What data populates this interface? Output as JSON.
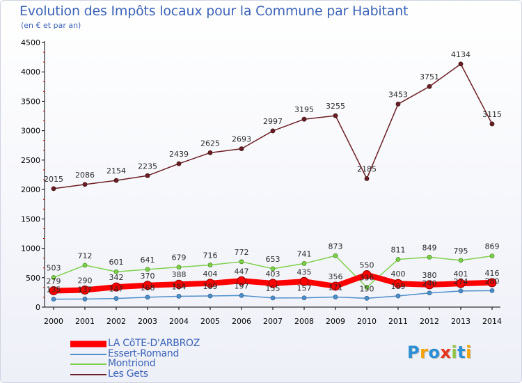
{
  "chart_data": {
    "type": "line",
    "title": "Evolution des Impôts locaux pour la Commune par Habitant",
    "subtitle": "(en € et par an)",
    "categories": [
      "2000",
      "2001",
      "2002",
      "2003",
      "2004",
      "2005",
      "2006",
      "2007",
      "2008",
      "2009",
      "2010",
      "2011",
      "2012",
      "2013",
      "2014"
    ],
    "ylim": [
      0,
      4500
    ],
    "yticks": [
      0,
      500,
      1000,
      1500,
      2000,
      2500,
      3000,
      3500,
      4000,
      4500
    ],
    "grid": false,
    "legend_position": "bottom-left",
    "series": [
      {
        "name": "LA CôTE-D'ARBROZ",
        "color": "#ff0000",
        "width": 8,
        "values": [
          279,
          290,
          342,
          370,
          388,
          404,
          447,
          403,
          435,
          356,
          550,
          400,
          380,
          401,
          416
        ],
        "labels": [
          "279",
          "290",
          "342",
          "370",
          "388",
          "404",
          "447",
          "403",
          "435",
          "356",
          "550",
          "400",
          "380",
          "401",
          "416"
        ]
      },
      {
        "name": "Essert-Romand",
        "color": "#4e8fc9",
        "width": 1.5,
        "values": [
          135,
          137,
          147,
          168,
          184,
          189,
          197,
          155,
          157,
          171,
          150,
          189,
          240,
          274,
          280
        ],
        "labels": [
          "135",
          "137",
          "147",
          "168",
          "184",
          "189",
          "197",
          "155",
          "157",
          "171",
          "150",
          "189",
          "240",
          "274",
          "280"
        ]
      },
      {
        "name": "Montriond",
        "color": "#7ed04a",
        "width": 1.5,
        "values": [
          503,
          712,
          601,
          641,
          679,
          716,
          772,
          653,
          741,
          873,
          336,
          811,
          849,
          795,
          869
        ],
        "labels": [
          "503",
          "712",
          "601",
          "641",
          "679",
          "716",
          "772",
          "653",
          "741",
          "873",
          "336",
          "811",
          "849",
          "795",
          "869"
        ]
      },
      {
        "name": "Les Gets",
        "color": "#6b1f24",
        "width": 1.5,
        "values": [
          2015,
          2086,
          2154,
          2235,
          2439,
          2625,
          2693,
          2997,
          3195,
          3255,
          2185,
          3453,
          3751,
          4134,
          3115
        ],
        "labels": [
          "2015",
          "2086",
          "2154",
          "2235",
          "2439",
          "2625",
          "2693",
          "2997",
          "3195",
          "3255",
          "2185",
          "3453",
          "3751",
          "4134",
          "3115"
        ]
      }
    ]
  },
  "logo": {
    "text": "Proxiti",
    "letters": [
      {
        "char": "P",
        "color": "#2a8fd6"
      },
      {
        "char": "r",
        "color": "#f5a300"
      },
      {
        "char": "o",
        "color": "#2a8fd6"
      },
      {
        "char": "x",
        "color": "#e8331c"
      },
      {
        "char": "i",
        "color": "#8ec63f"
      },
      {
        "char": "t",
        "color": "#2a8fd6"
      },
      {
        "char": "i",
        "color": "#f5a300"
      }
    ]
  }
}
